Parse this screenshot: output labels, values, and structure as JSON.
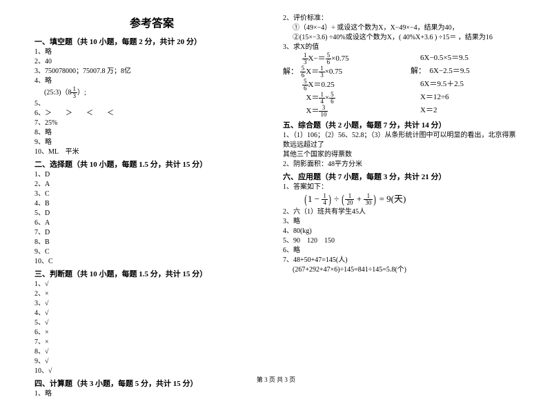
{
  "title": "参考答案",
  "footer": "第 3 页 共 3 页",
  "left": {
    "s1": {
      "header": "一、填空题（共 10 小题，每题 2 分，共计 20 分）",
      "i1": "1、略",
      "i2": "2、40",
      "i3": "3、750078000；75007.8 万；8亿",
      "i4": "4、略",
      "i5a": "(25:3)（8",
      "i5b": "）;",
      "i5": "5、",
      "i6": "6、＞　　＞　　＜　　＜",
      "i7": "7、25%",
      "i8": "8、略",
      "i9": "9、略",
      "i10": "10、ML　平米"
    },
    "s2": {
      "header": "二、选择题（共 10 小题，每题 1.5 分，共计 15 分）",
      "i1": "1、D",
      "i2": "2、A",
      "i3": "3、C",
      "i4": "4、B",
      "i5": "5、D",
      "i6": "6、A",
      "i7": "7、D",
      "i8": "8、B",
      "i9": "9、C",
      "i10": "10、C"
    },
    "s3": {
      "header": "三、判断题（共 10 小题，每题 1.5 分，共计 15 分）",
      "i1": "1、√",
      "i2": "2、×",
      "i3": "3、√",
      "i4": "4、√",
      "i5": "5、√",
      "i6": "6、×",
      "i7": "7、×",
      "i8": "8、√",
      "i9": "9、√",
      "i10": "10、√"
    },
    "s4": {
      "header": "四、计算题（共 3 小题，每题 5 分，共计 15 分）",
      "i1": "1、略"
    }
  },
  "right": {
    "q2": {
      "head": "2、评价标准：",
      "l1": "①（49×−4）÷ 或设这个数为X，X−49×−4，结果为40，",
      "l2": "②(15×−3.6) ÷40%或设这个数为X，( 40%X+3.6 ) ÷15＝ ，结果为16"
    },
    "q3": {
      "head": "3、求X的值",
      "r1l": "X−",
      "r1m": "＝",
      "r1r": "×0.75",
      "r1right": "6X−0.5×5＝9.5",
      "r2pre": "解：",
      "r2l": "X＝",
      "r2r": "×0.75",
      "r2right": "解：　6X−2.5＝9.5",
      "r3l": "X＝0.25",
      "r3right": "6X＝9.5＋2.5",
      "r4l": "X＝",
      "r4mid": "×",
      "r4right": "X＝12÷6",
      "r5l": "X＝",
      "r5right": "X＝2"
    },
    "s5": {
      "header": "五、综合题（共 2 小题，每题 7 分，共计 14 分）",
      "l1": "1、（1）106；（2）56、52.8；（3）从条形统计图中可以明显的看出，北京得票数远远超过了",
      "l2": "其他三个国家的得票数",
      "l3": "2、阴影面积：48平方分米"
    },
    "s6": {
      "header": "六、应用题（共 7 小题，每题 3 分，共计 21 分）",
      "l1": "1、答案如下：",
      "expr_eq": " = 9(天)",
      "l2": "2、六（1）班共有学生45人",
      "l3": "3、略",
      "l4": "4、80(kg)",
      "l5": "5、90　120　150",
      "l6": "6、略",
      "l7": "7、48+50+47=145(人)",
      "l7b": "(267+292+47×6)÷145=841÷145=5.8(个)"
    }
  },
  "fracs": {
    "one_three": {
      "n": "1",
      "d": "3"
    },
    "five_six": {
      "n": "5",
      "d": "6"
    },
    "one_four": {
      "n": "1",
      "d": "4"
    },
    "three_ten": {
      "n": "3",
      "d": "10"
    },
    "one_twenty": {
      "n": "1",
      "d": "20"
    },
    "one_thirty": {
      "n": "1",
      "d": "30"
    }
  }
}
